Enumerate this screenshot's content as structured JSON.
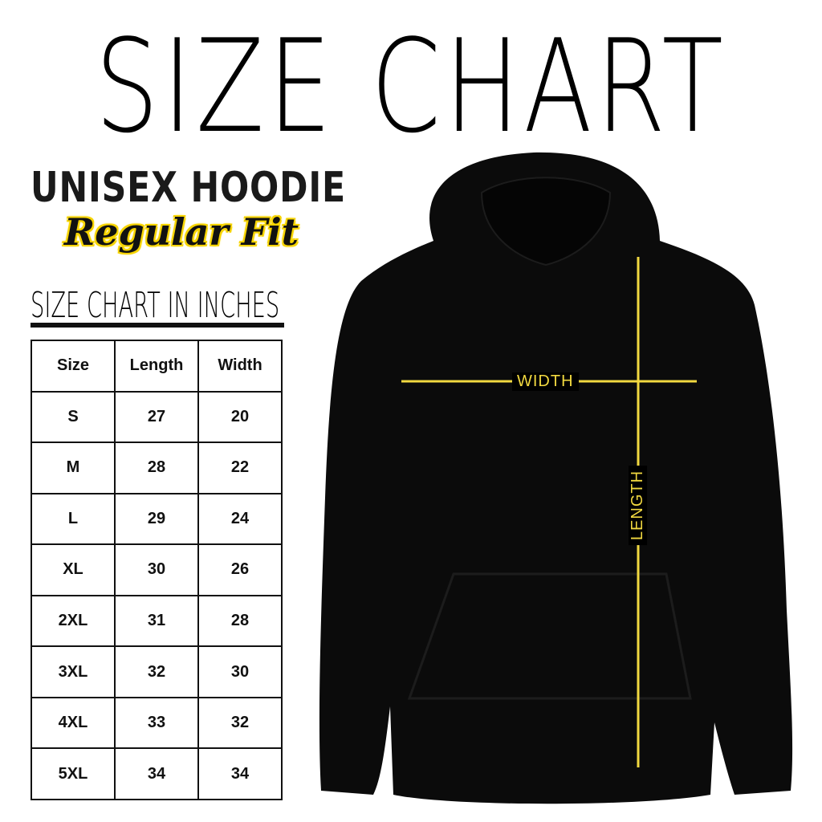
{
  "title": "SIZE CHART",
  "product": "UNISEX HOODIE",
  "fit": "Regular Fit",
  "subtitle": "SIZE CHART IN INCHES",
  "table": {
    "headers": [
      "Size",
      "Length",
      "Width"
    ],
    "rows": [
      [
        "S",
        "27",
        "20"
      ],
      [
        "M",
        "28",
        "22"
      ],
      [
        "L",
        "29",
        "24"
      ],
      [
        "XL",
        "30",
        "26"
      ],
      [
        "2XL",
        "31",
        "28"
      ],
      [
        "3XL",
        "32",
        "30"
      ],
      [
        "4XL",
        "33",
        "32"
      ],
      [
        "5XL",
        "34",
        "34"
      ]
    ]
  },
  "diagram": {
    "width_label": "WIDTH",
    "length_label": "LENGTH",
    "line_color": "#f2d940",
    "garment_color": "#0b0b0b"
  }
}
